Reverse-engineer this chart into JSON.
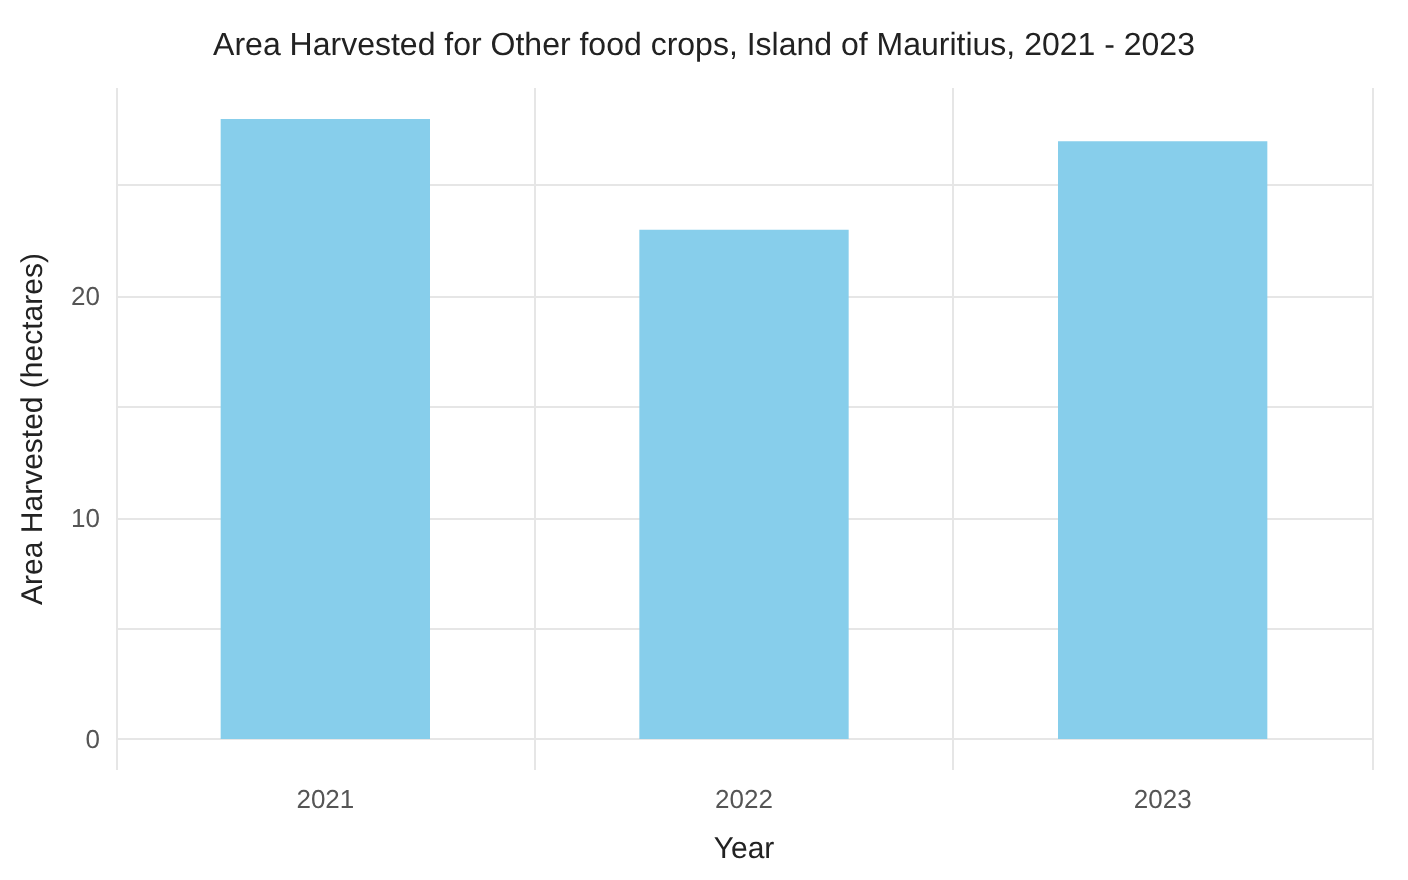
{
  "chart_data": {
    "type": "bar",
    "title": "Area Harvested for Other food crops, Island of Mauritius, 2021 - 2023",
    "xlabel": "Year",
    "ylabel": "Area Harvested (hectares)",
    "categories": [
      "2021",
      "2022",
      "2023"
    ],
    "values": [
      28,
      23,
      27
    ],
    "color": "#87ceeb",
    "ylim": [
      -1.4,
      29.4
    ],
    "yticks": [
      0,
      {
        "value": 5,
        "label": null
      },
      10,
      {
        "value": 15,
        "label": null
      },
      20,
      {
        "value": 25,
        "label": null
      }
    ],
    "grid": true
  }
}
